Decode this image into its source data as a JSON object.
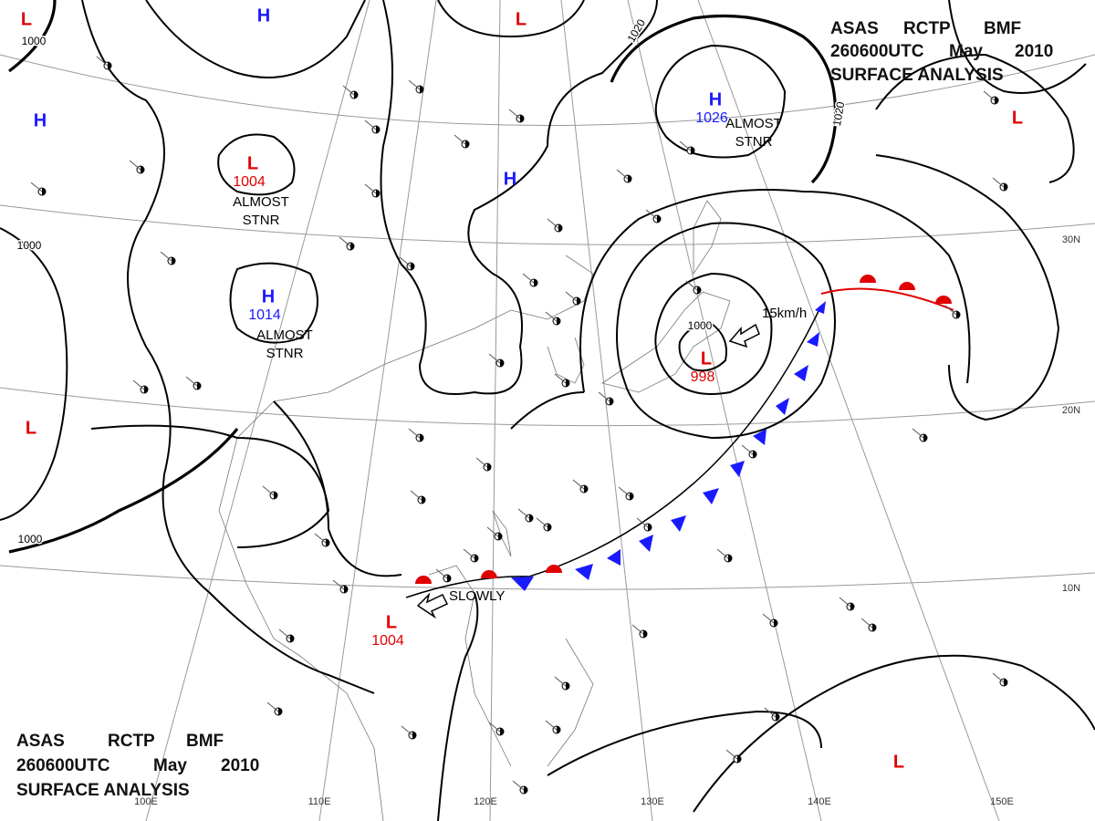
{
  "title": {
    "agency": "ASAS",
    "station": "RCTP",
    "code": "BMF",
    "time": "260600UTC",
    "month": "May",
    "year": "2010",
    "product": "SURFACE ANALYSIS"
  },
  "colors": {
    "H": "#1a1aff",
    "L": "#e00000"
  },
  "systems": [
    {
      "symbol": "H"
    },
    {
      "symbol": "L"
    },
    {
      "symbol": "L"
    },
    {
      "symbol": "H"
    },
    {
      "symbol": "L",
      "pressure": 1004
    },
    {
      "symbol": "H"
    },
    {
      "symbol": "H",
      "pressure": 1026
    },
    {
      "symbol": "H",
      "pressure": 1014
    },
    {
      "symbol": "L",
      "pressure": 998
    },
    {
      "symbol": "L"
    },
    {
      "symbol": "L"
    },
    {
      "symbol": "L",
      "pressure": 1004
    },
    {
      "symbol": "L"
    }
  ],
  "notes": [
    "ALMOST STNR",
    "ALMOST STNR",
    "ALMOST STNR",
    "SLOWLY",
    "15km/h"
  ],
  "isobar_labels": [
    1000,
    1000,
    1000,
    1020,
    1020,
    1000
  ],
  "latitudes": [
    "30N",
    "20N",
    "10N"
  ],
  "longitudes": [
    "100E",
    "110E",
    "120E",
    "130E",
    "140E",
    "150E"
  ]
}
